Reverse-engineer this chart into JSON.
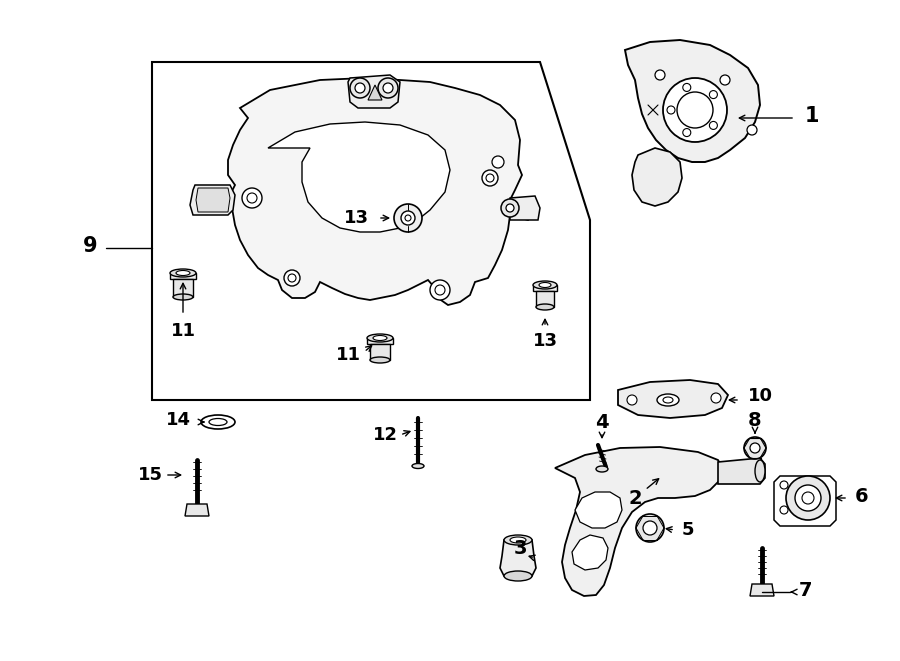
{
  "bg_color": "#ffffff",
  "line_color": "#000000",
  "fig_width": 9.0,
  "fig_height": 6.61,
  "dpi": 100
}
